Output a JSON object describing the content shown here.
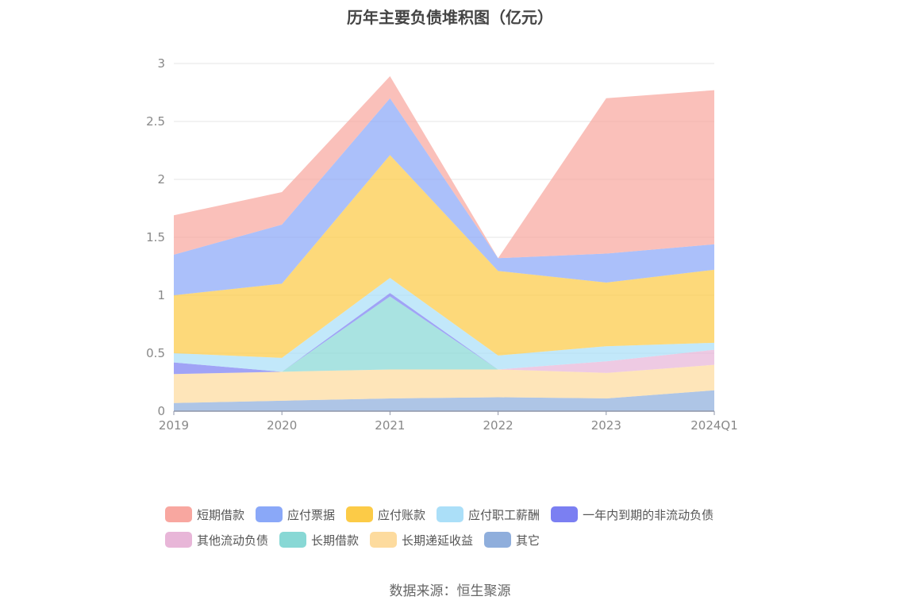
{
  "chart_data": {
    "type": "area",
    "stacked": true,
    "title": "历年主要负债堆积图（亿元）",
    "categories": [
      "2019",
      "2020",
      "2021",
      "2022",
      "2023",
      "2024Q1"
    ],
    "ylim": [
      0,
      3
    ],
    "yticks": [
      "0",
      "0.5",
      "1",
      "1.5",
      "2",
      "2.5",
      "3"
    ],
    "grid": true,
    "legend_position": "bottom",
    "series": [
      {
        "name": "其它",
        "color": "#8FAEDC",
        "values": [
          0.07,
          0.09,
          0.11,
          0.12,
          0.11,
          0.18
        ]
      },
      {
        "name": "长期递延收益",
        "color": "#FDDB9E",
        "values": [
          0.25,
          0.25,
          0.25,
          0.24,
          0.22,
          0.22
        ]
      },
      {
        "name": "长期借款",
        "color": "#88D8D5",
        "values": [
          0.0,
          0.0,
          0.63,
          0.0,
          0.0,
          0.0
        ]
      },
      {
        "name": "其他流动负债",
        "color": "#E8B6D8",
        "values": [
          0.0,
          0.0,
          0.0,
          0.0,
          0.1,
          0.13
        ]
      },
      {
        "name": "一年内到期的非流动负债",
        "color": "#7B7FF2",
        "values": [
          0.1,
          0.0,
          0.03,
          0.0,
          0.0,
          0.0
        ]
      },
      {
        "name": "应付职工薪酬",
        "color": "#ABDFF8",
        "values": [
          0.08,
          0.12,
          0.13,
          0.12,
          0.13,
          0.06
        ]
      },
      {
        "name": "应付账款",
        "color": "#FCCB47",
        "values": [
          0.5,
          0.64,
          1.06,
          0.73,
          0.55,
          0.63
        ]
      },
      {
        "name": "应付票据",
        "color": "#8AA8F8",
        "values": [
          0.35,
          0.51,
          0.49,
          0.11,
          0.25,
          0.22
        ]
      },
      {
        "name": "短期借款",
        "color": "#F8A7A0",
        "values": [
          0.34,
          0.28,
          0.19,
          0.0,
          1.34,
          1.33
        ]
      }
    ],
    "legend_order": [
      "短期借款",
      "应付票据",
      "应付账款",
      "应付职工薪酬",
      "一年内到期的非流动负债",
      "其他流动负债",
      "长期借款",
      "长期递延收益",
      "其它"
    ]
  },
  "source": "数据来源：恒生聚源"
}
